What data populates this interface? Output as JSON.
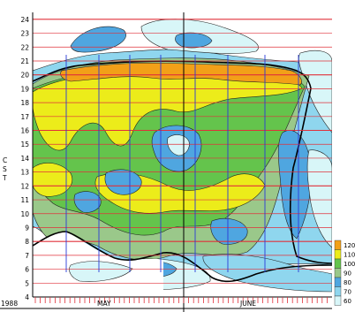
{
  "chart_data": {
    "type": "heatmap",
    "year_label": "1988",
    "ylabel": "CST",
    "y_ticks": [
      4,
      5,
      6,
      7,
      8,
      9,
      10,
      11,
      12,
      13,
      14,
      15,
      16,
      17,
      18,
      19,
      20,
      21,
      22,
      23,
      24
    ],
    "ylim": [
      4,
      24.5
    ],
    "month_labels": [
      "MAY",
      "JUNE"
    ],
    "colorbar_levels": [
      60,
      70,
      80,
      90,
      100,
      110,
      120
    ],
    "colorbar_colors": {
      "60": "#d8f6f8",
      "70": "#8fd6ee",
      "80": "#4fa6e0",
      "90": "#9ac88a",
      "100": "#64c44c",
      "110": "#ecec1a",
      "120": "#f2a018"
    },
    "bands_description_source": "hourly contour of value by day and hour (CST), May–June 1988",
    "grid": true,
    "legend_position": "bottom-right"
  }
}
